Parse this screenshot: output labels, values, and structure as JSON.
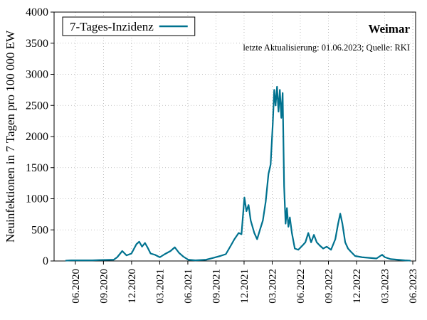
{
  "chart_data": {
    "type": "line",
    "annotations": [
      "Weimar",
      "letzte Aktualisierung: 01.06.2023; Quelle: RKI"
    ],
    "ylabel": "Neuinfektionen in 7 Tagen pro 100 000 EW",
    "legend": "upper left",
    "grid": true,
    "xlim": [
      2020.228,
      2023.442
    ],
    "ylim": [
      0,
      4000
    ],
    "yticks": [
      0,
      500,
      1000,
      1500,
      2000,
      2500,
      3000,
      3500,
      4000
    ],
    "xticks": [
      {
        "value": 2020.417,
        "label": "06.2020"
      },
      {
        "value": 2020.667,
        "label": "09.2020"
      },
      {
        "value": 2020.917,
        "label": "12.2020"
      },
      {
        "value": 2021.167,
        "label": "03.2021"
      },
      {
        "value": 2021.417,
        "label": "06.2021"
      },
      {
        "value": 2021.667,
        "label": "09.2021"
      },
      {
        "value": 2021.917,
        "label": "12.2021"
      },
      {
        "value": 2022.167,
        "label": "03.2022"
      },
      {
        "value": 2022.417,
        "label": "06.2022"
      },
      {
        "value": 2022.667,
        "label": "09.2022"
      },
      {
        "value": 2022.917,
        "label": "12.2022"
      },
      {
        "value": 2023.167,
        "label": "03.2023"
      },
      {
        "value": 2023.417,
        "label": "06.2023"
      }
    ],
    "x": [
      2020.329,
      2020.379,
      2020.474,
      2020.569,
      2020.632,
      2020.758,
      2020.789,
      2020.834,
      2020.872,
      2020.916,
      2020.96,
      2020.985,
      2021.01,
      2021.036,
      2021.061,
      2021.086,
      2021.124,
      2021.168,
      2021.212,
      2021.263,
      2021.301,
      2021.339,
      2021.377,
      2021.421,
      2021.484,
      2021.579,
      2021.642,
      2021.705,
      2021.755,
      2021.8,
      2021.831,
      2021.869,
      2021.894,
      2021.92,
      2021.938,
      2021.957,
      2021.976,
      2022.008,
      2022.033,
      2022.058,
      2022.084,
      2022.109,
      2022.134,
      2022.153,
      2022.172,
      2022.185,
      2022.197,
      2022.21,
      2022.223,
      2022.235,
      2022.248,
      2022.26,
      2022.273,
      2022.286,
      2022.298,
      2022.311,
      2022.324,
      2022.342,
      2022.368,
      2022.399,
      2022.437,
      2022.462,
      2022.488,
      2022.513,
      2022.538,
      2022.563,
      2022.589,
      2022.62,
      2022.652,
      2022.69,
      2022.728,
      2022.753,
      2022.772,
      2022.791,
      2022.816,
      2022.841,
      2022.866,
      2022.904,
      2022.967,
      2023.031,
      2023.094,
      2023.144,
      2023.169,
      2023.22,
      2023.283,
      2023.346,
      2023.397
    ],
    "series": [
      {
        "name": "7-Tages-Inzidenz",
        "color": "#00728f",
        "values": [
          5,
          10,
          10,
          10,
          15,
          20,
          60,
          160,
          90,
          120,
          270,
          310,
          230,
          290,
          210,
          120,
          100,
          60,
          110,
          160,
          220,
          130,
          70,
          20,
          10,
          20,
          50,
          80,
          110,
          250,
          350,
          450,
          430,
          1020,
          800,
          900,
          650,
          450,
          350,
          500,
          650,
          950,
          1400,
          1550,
          2200,
          2750,
          2500,
          2800,
          2400,
          2750,
          2300,
          2700,
          1200,
          600,
          850,
          550,
          700,
          450,
          200,
          180,
          250,
          300,
          450,
          300,
          420,
          300,
          250,
          200,
          230,
          180,
          350,
          600,
          760,
          600,
          300,
          200,
          150,
          80,
          60,
          50,
          40,
          100,
          60,
          30,
          20,
          10,
          5
        ]
      }
    ]
  }
}
